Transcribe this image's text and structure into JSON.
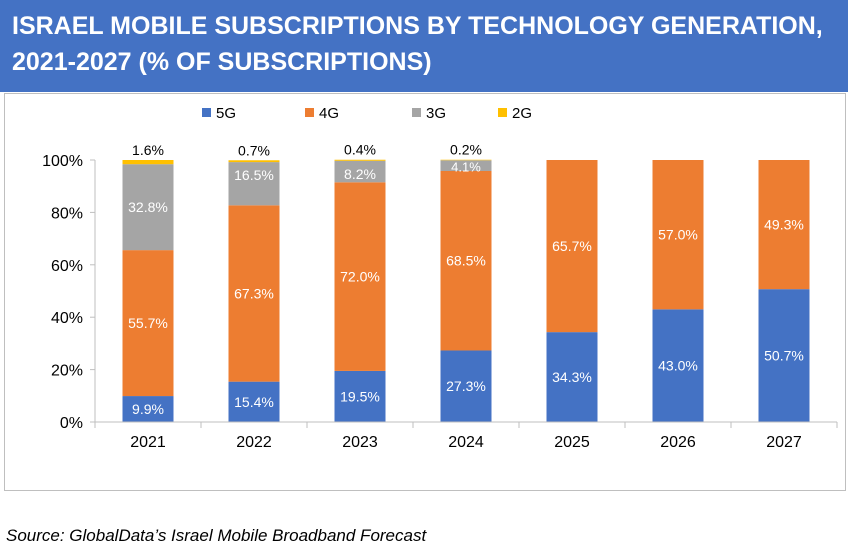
{
  "header": {
    "title": "ISRAEL MOBILE SUBSCRIPTIONS BY TECHNOLOGY GENERATION, 2021-2027 (% OF SUBSCRIPTIONS)"
  },
  "source": "Source: GlobalData’s Israel Mobile Broadband Forecast",
  "colors": {
    "header_bg": "#4472C4",
    "5G": "#4472C4",
    "4G": "#ED7D31",
    "3G": "#A5A5A5",
    "2G": "#FFC000"
  },
  "chart_data": {
    "type": "bar",
    "stacked": true,
    "title": "",
    "xlabel": "",
    "ylabel": "",
    "ylim": [
      0,
      100
    ],
    "yticks": [
      "0%",
      "20%",
      "40%",
      "60%",
      "80%",
      "100%"
    ],
    "categories": [
      "2021",
      "2022",
      "2023",
      "2024",
      "2025",
      "2026",
      "2027"
    ],
    "legend_position": "top",
    "grid": false,
    "series": [
      {
        "name": "5G",
        "color": "#4472C4",
        "values": [
          9.9,
          15.4,
          19.5,
          27.3,
          34.3,
          43.0,
          50.7
        ],
        "labels": [
          "9.9%",
          "15.4%",
          "19.5%",
          "27.3%",
          "34.3%",
          "43.0%",
          "50.7%"
        ]
      },
      {
        "name": "4G",
        "color": "#ED7D31",
        "values": [
          55.7,
          67.3,
          72.0,
          68.5,
          65.7,
          57.0,
          49.3
        ],
        "labels": [
          "55.7%",
          "67.3%",
          "72.0%",
          "68.5%",
          "65.7%",
          "57.0%",
          "49.3%"
        ]
      },
      {
        "name": "3G",
        "color": "#A5A5A5",
        "values": [
          32.8,
          16.5,
          8.2,
          4.1,
          0,
          0,
          0
        ],
        "labels": [
          "32.8%",
          "16.5%",
          "8.2%",
          "4.1%",
          "",
          "",
          ""
        ]
      },
      {
        "name": "2G",
        "color": "#FFC000",
        "values": [
          1.6,
          0.7,
          0.4,
          0.2,
          0,
          0,
          0
        ],
        "labels": [
          "1.6%",
          "0.7%",
          "0.4%",
          "0.2%",
          "",
          "",
          ""
        ]
      }
    ]
  }
}
